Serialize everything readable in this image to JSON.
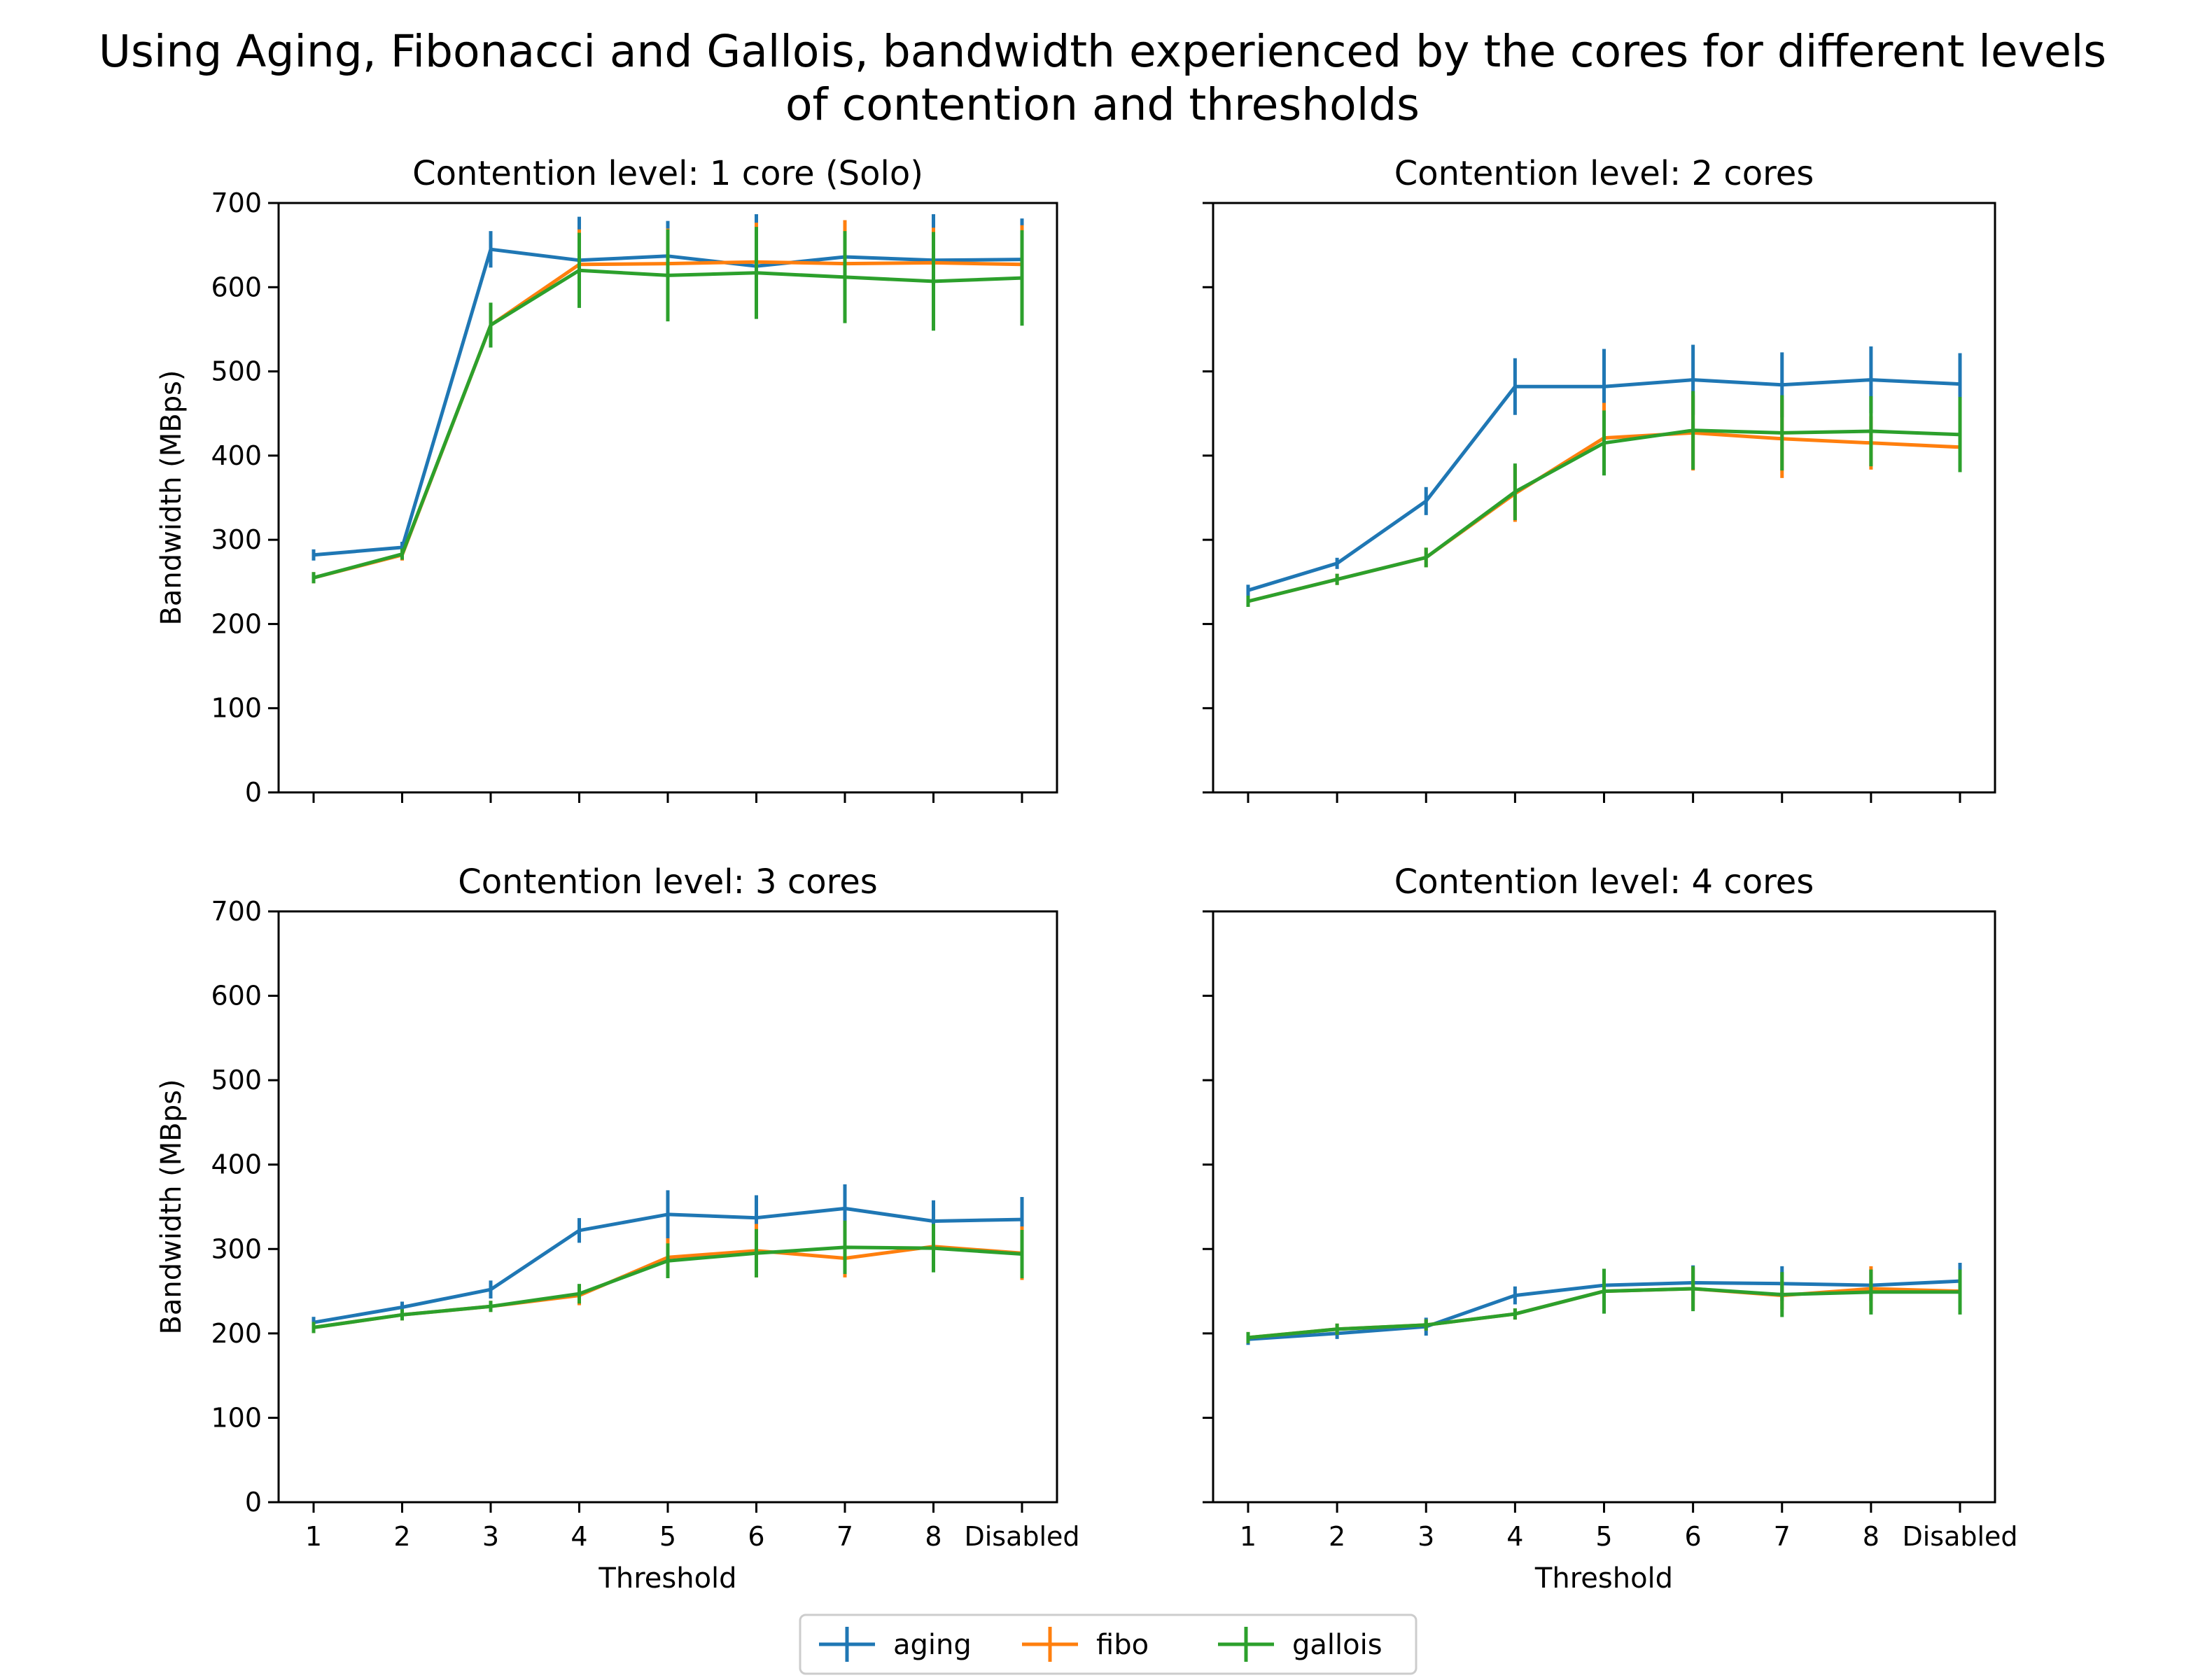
{
  "figure": {
    "title_line1": "Using Aging, Fibonacci and Gallois, bandwidth experienced by the cores for different levels",
    "title_line2": "of contention and thresholds"
  },
  "colors": {
    "aging": "#1f77b4",
    "fibo": "#ff7f0e",
    "gallois": "#2ca02c"
  },
  "legend": {
    "items": [
      "aging",
      "fibo",
      "gallois"
    ],
    "placement": "bottom-center"
  },
  "chart_data": [
    {
      "type": "line",
      "title": "Contention level: 1 core (Solo)",
      "xlabel": "",
      "ylabel": "Bandwidth (MBps)",
      "categories": [
        "1",
        "2",
        "3",
        "4",
        "5",
        "6",
        "7",
        "8",
        "Disabled"
      ],
      "ylim": [
        0,
        700
      ],
      "yticks": [
        0,
        100,
        200,
        300,
        400,
        500,
        600,
        700
      ],
      "show_x_ticklabels": false,
      "show_y_ticklabels": true,
      "grid": false,
      "series": [
        {
          "name": "aging",
          "values": [
            282,
            291,
            645,
            632,
            637,
            625,
            636,
            632,
            633
          ],
          "errors": [
            0,
            0,
            15,
            45,
            35,
            55,
            35,
            48,
            42
          ]
        },
        {
          "name": "fibo",
          "values": [
            255,
            282,
            555,
            627,
            628,
            630,
            628,
            629,
            627
          ],
          "errors": [
            0,
            0,
            15,
            35,
            35,
            40,
            45,
            35,
            40
          ]
        },
        {
          "name": "gallois",
          "values": [
            255,
            283,
            555,
            620,
            614,
            617,
            612,
            607,
            611
          ],
          "errors": [
            0,
            0,
            20,
            38,
            48,
            48,
            48,
            52,
            50
          ]
        }
      ]
    },
    {
      "type": "line",
      "title": "Contention level: 2 cores",
      "xlabel": "",
      "ylabel": "",
      "categories": [
        "1",
        "2",
        "3",
        "4",
        "5",
        "6",
        "7",
        "8",
        "Disabled"
      ],
      "ylim": [
        0,
        700
      ],
      "yticks": [
        0,
        100,
        200,
        300,
        400,
        500,
        600,
        700
      ],
      "show_x_ticklabels": false,
      "show_y_ticklabels": false,
      "grid": false,
      "series": [
        {
          "name": "aging",
          "values": [
            240,
            272,
            346,
            482,
            482,
            490,
            484,
            490,
            485
          ],
          "errors": [
            0,
            0,
            10,
            27,
            38,
            35,
            32,
            33,
            30
          ]
        },
        {
          "name": "fibo",
          "values": [
            227,
            253,
            279,
            355,
            421,
            427,
            420,
            415,
            410
          ],
          "errors": [
            0,
            0,
            5,
            27,
            35,
            38,
            40,
            25,
            20
          ]
        },
        {
          "name": "gallois",
          "values": [
            227,
            253,
            279,
            357,
            415,
            430,
            427,
            429,
            425
          ],
          "errors": [
            0,
            0,
            5,
            27,
            32,
            40,
            38,
            35,
            38
          ]
        }
      ]
    },
    {
      "type": "line",
      "title": "Contention level: 3 cores",
      "xlabel": "Threshold",
      "ylabel": "Bandwidth (MBps)",
      "categories": [
        "1",
        "2",
        "3",
        "4",
        "5",
        "6",
        "7",
        "8",
        "Disabled"
      ],
      "ylim": [
        0,
        700
      ],
      "yticks": [
        0,
        100,
        200,
        300,
        400,
        500,
        600,
        700
      ],
      "show_x_ticklabels": true,
      "show_y_ticklabels": true,
      "grid": false,
      "series": [
        {
          "name": "aging",
          "values": [
            213,
            231,
            252,
            322,
            341,
            337,
            348,
            333,
            335
          ],
          "errors": [
            0,
            0,
            4,
            8,
            22,
            20,
            22,
            18,
            20
          ]
        },
        {
          "name": "fibo",
          "values": [
            207,
            222,
            232,
            245,
            290,
            298,
            289,
            303,
            295
          ],
          "errors": [
            0,
            0,
            0,
            5,
            16,
            25,
            16,
            15,
            25
          ]
        },
        {
          "name": "gallois",
          "values": [
            207,
            222,
            232,
            247,
            286,
            295,
            302,
            301,
            294
          ],
          "errors": [
            0,
            0,
            0,
            5,
            14,
            22,
            25,
            22,
            22
          ]
        }
      ]
    },
    {
      "type": "line",
      "title": "Contention level: 4 cores",
      "xlabel": "Threshold",
      "ylabel": "",
      "categories": [
        "1",
        "2",
        "3",
        "4",
        "5",
        "6",
        "7",
        "8",
        "Disabled"
      ],
      "ylim": [
        0,
        700
      ],
      "yticks": [
        0,
        100,
        200,
        300,
        400,
        500,
        600,
        700
      ],
      "show_x_ticklabels": true,
      "show_y_ticklabels": false,
      "grid": false,
      "series": [
        {
          "name": "aging",
          "values": [
            193,
            200,
            208,
            245,
            257,
            260,
            259,
            257,
            262
          ],
          "errors": [
            0,
            0,
            4,
            4,
            12,
            14,
            14,
            12,
            15
          ]
        },
        {
          "name": "fibo",
          "values": [
            195,
            205,
            210,
            223,
            250,
            253,
            245,
            253,
            250
          ],
          "errors": [
            0,
            0,
            0,
            0,
            14,
            18,
            10,
            20,
            12
          ]
        },
        {
          "name": "gallois",
          "values": [
            195,
            205,
            210,
            223,
            250,
            253,
            246,
            249,
            249
          ],
          "errors": [
            0,
            0,
            0,
            0,
            20,
            20,
            20,
            20,
            20
          ]
        }
      ]
    }
  ]
}
